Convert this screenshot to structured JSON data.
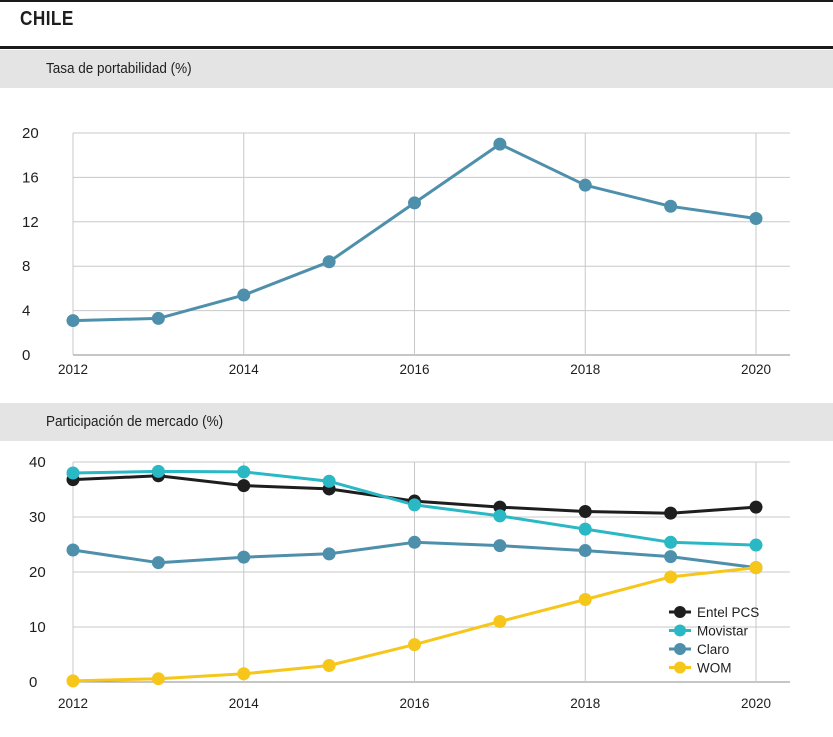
{
  "header": {
    "country": "CHILE"
  },
  "chart_data": [
    {
      "type": "line",
      "title": "Tasa de portabilidad (%)",
      "xlabel": "",
      "ylabel": "",
      "xlim": [
        2012,
        2020
      ],
      "ylim": [
        0,
        20
      ],
      "x_ticks": [
        2012,
        2014,
        2016,
        2018,
        2020
      ],
      "y_ticks": [
        0,
        4,
        8,
        12,
        16,
        20
      ],
      "x_gridlines": [
        2012,
        2014,
        2016,
        2018,
        2020
      ],
      "grid": true,
      "series": [
        {
          "name": "Tasa de portabilidad",
          "color": "#4e90ab",
          "x": [
            2012,
            2013,
            2014,
            2015,
            2016,
            2017,
            2018,
            2019,
            2020
          ],
          "values": [
            3.1,
            3.3,
            5.4,
            8.4,
            13.7,
            19.0,
            15.3,
            13.4,
            12.3
          ]
        }
      ]
    },
    {
      "type": "line",
      "title": "Participación de mercado (%)",
      "xlabel": "",
      "ylabel": "",
      "xlim": [
        2012,
        2020
      ],
      "ylim": [
        0,
        40
      ],
      "x_ticks": [
        2012,
        2014,
        2016,
        2018,
        2020
      ],
      "y_ticks": [
        0,
        10,
        20,
        30,
        40
      ],
      "x_gridlines": [
        2012,
        2014,
        2016,
        2018,
        2020
      ],
      "grid": true,
      "legend": "bottom-right",
      "series": [
        {
          "name": "Entel PCS",
          "color": "#1e1e1e",
          "x": [
            2012,
            2013,
            2014,
            2015,
            2016,
            2017,
            2018,
            2019,
            2020
          ],
          "values": [
            36.8,
            37.5,
            35.7,
            35.1,
            32.9,
            31.8,
            31.0,
            30.7,
            31.8
          ]
        },
        {
          "name": "Movistar",
          "color": "#2ab8c4",
          "x": [
            2012,
            2013,
            2014,
            2015,
            2016,
            2017,
            2018,
            2019,
            2020
          ],
          "values": [
            38.0,
            38.3,
            38.2,
            36.5,
            32.2,
            30.2,
            27.8,
            25.4,
            24.9
          ]
        },
        {
          "name": "Claro",
          "color": "#4e90ab",
          "x": [
            2012,
            2013,
            2014,
            2015,
            2016,
            2017,
            2018,
            2019,
            2020
          ],
          "values": [
            24.0,
            21.7,
            22.7,
            23.3,
            25.4,
            24.8,
            23.9,
            22.8,
            20.8
          ]
        },
        {
          "name": "WOM",
          "color": "#f6c61b",
          "x": [
            2012,
            2013,
            2014,
            2015,
            2016,
            2017,
            2018,
            2019,
            2020
          ],
          "values": [
            0.2,
            0.6,
            1.5,
            3.0,
            6.8,
            11.0,
            15.0,
            19.1,
            20.8
          ]
        }
      ]
    }
  ]
}
